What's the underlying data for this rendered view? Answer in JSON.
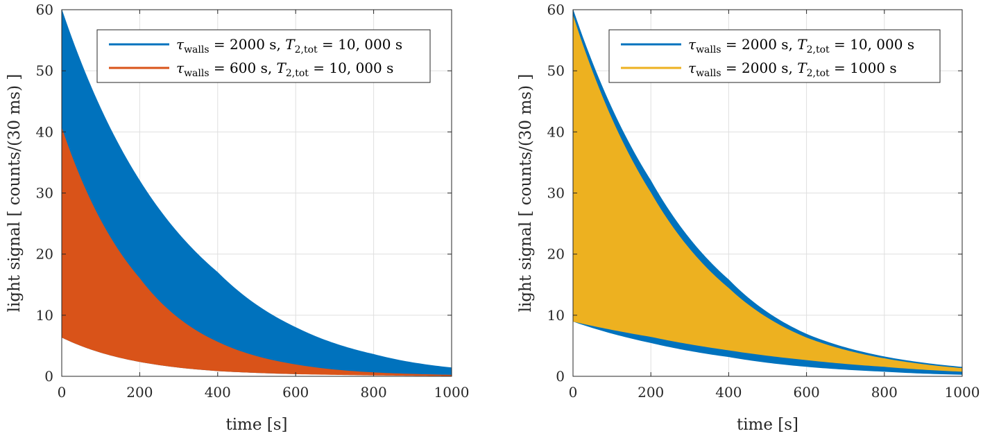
{
  "chart_data": [
    {
      "type": "area",
      "xlabel": "time [s]",
      "ylabel": "light signal [ counts/(30 ms) ]",
      "xlim": [
        0,
        1000
      ],
      "ylim": [
        0,
        60
      ],
      "xticks": [
        "0",
        "200",
        "400",
        "600",
        "800",
        "1000"
      ],
      "yticks": [
        "0",
        "10",
        "20",
        "30",
        "40",
        "50",
        "60"
      ],
      "grid": true,
      "legend_position": "top-right",
      "series": [
        {
          "name": "τwalls = 2000 s, T2,tot = 10,000 s",
          "legend": {
            "tau_symbol": "τ",
            "tau_sub": "walls",
            "tau_val": " = 2000 s, ",
            "t_symbol": "T",
            "t_sub": "2,tot",
            "t_val": " = 10, 000 s"
          },
          "color": "#0072BD",
          "x": [
            0,
            200,
            400,
            600,
            800,
            1000
          ],
          "upper": [
            60,
            32.0,
            17.0,
            8.0,
            3.6,
            1.4
          ],
          "lower": [
            6.4,
            2.4,
            0.9,
            0.4,
            0.3,
            0.2
          ]
        },
        {
          "name": "τwalls = 600 s, T2,tot = 10,000 s",
          "legend": {
            "tau_symbol": "τ",
            "tau_sub": "walls",
            "tau_val": " = 600 s, ",
            "t_symbol": "T",
            "t_sub": "2,tot",
            "t_val": " = 10, 000 s"
          },
          "color": "#D95319",
          "x": [
            0,
            200,
            400,
            600,
            800,
            1000
          ],
          "upper": [
            40.6,
            16.0,
            5.6,
            1.9,
            0.6,
            0.2
          ],
          "lower": [
            6.4,
            2.4,
            0.9,
            0.4,
            0.2,
            0.1
          ]
        }
      ]
    },
    {
      "type": "area",
      "xlabel": "time [s]",
      "ylabel": "light signal [ counts/(30 ms) ]",
      "xlim": [
        0,
        1000
      ],
      "ylim": [
        0,
        60
      ],
      "xticks": [
        "0",
        "200",
        "400",
        "600",
        "800",
        "1000"
      ],
      "yticks": [
        "0",
        "10",
        "20",
        "30",
        "40",
        "50",
        "60"
      ],
      "grid": true,
      "legend_position": "top-right",
      "series": [
        {
          "name": "τwalls = 2000 s, T2,tot = 10,000 s",
          "legend": {
            "tau_symbol": "τ",
            "tau_sub": "walls",
            "tau_val": " = 2000 s, ",
            "t_symbol": "T",
            "t_sub": "2,tot",
            "t_val": " = 10, 000 s"
          },
          "color": "#0072BD",
          "x": [
            0,
            200,
            400,
            600,
            800,
            1000
          ],
          "upper": [
            60,
            32.0,
            15.8,
            6.9,
            3.2,
            1.5
          ],
          "lower": [
            9.0,
            5.5,
            3.2,
            1.6,
            0.8,
            0.3
          ]
        },
        {
          "name": "τwalls = 2000 s, T2,tot = 1000 s",
          "legend": {
            "tau_symbol": "τ",
            "tau_sub": "walls",
            "tau_val": " = 2000 s, ",
            "t_symbol": "T",
            "t_sub": "2,tot",
            "t_val": " = 1000 s"
          },
          "color": "#EDB120",
          "x": [
            0,
            200,
            400,
            600,
            800,
            1000
          ],
          "upper": [
            59.0,
            30.0,
            14.4,
            6.3,
            2.9,
            1.3
          ],
          "lower": [
            9.0,
            6.5,
            4.3,
            2.7,
            1.6,
            0.8
          ]
        }
      ]
    }
  ]
}
